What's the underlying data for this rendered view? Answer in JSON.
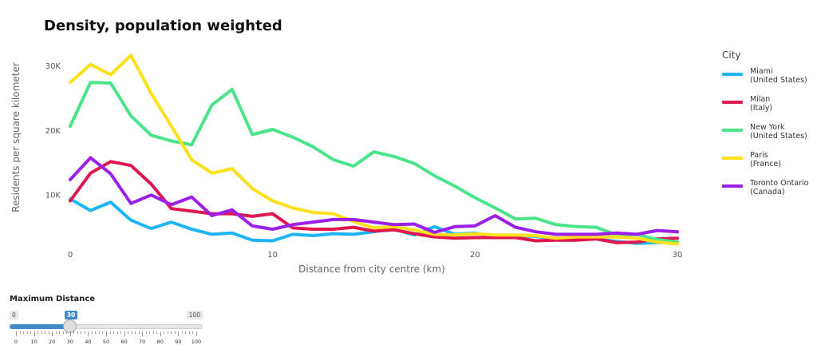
{
  "chart_data": {
    "type": "line",
    "title": "Density, population weighted",
    "xlabel": "Distance from city centre (km)",
    "ylabel": "Residents per square kilometer",
    "xlim": [
      -1,
      30
    ],
    "ylim": [
      1000,
      33000
    ],
    "x_ticks": [
      0,
      10,
      20,
      30
    ],
    "y_ticks": [
      10000,
      20000,
      30000
    ],
    "y_tick_labels": [
      "10K",
      "20K",
      "30K"
    ],
    "legend_title": "City",
    "legend_position": "right",
    "x": [
      0,
      1,
      2,
      3,
      4,
      5,
      6,
      7,
      8,
      9,
      10,
      11,
      12,
      13,
      14,
      15,
      16,
      17,
      18,
      19,
      20,
      21,
      22,
      23,
      24,
      25,
      26,
      27,
      28,
      29,
      30
    ],
    "series": [
      {
        "name": "Miami",
        "sublabel": "(United States)",
        "color": "#1fb5f5",
        "values": [
          9300,
          7500,
          8800,
          6000,
          4700,
          5700,
          4600,
          3800,
          4000,
          2900,
          2800,
          3800,
          3600,
          3900,
          3800,
          4200,
          4600,
          3700,
          5000,
          3800,
          4000,
          3400,
          3500,
          3500,
          3000,
          3000,
          3100,
          2700,
          2400,
          2500,
          2500
        ]
      },
      {
        "name": "Milan",
        "sublabel": "(Italy)",
        "color": "#e0174f",
        "values": [
          9000,
          13300,
          15100,
          14500,
          11600,
          7800,
          7400,
          7000,
          7000,
          6600,
          7000,
          4800,
          4600,
          4600,
          4900,
          4300,
          4500,
          3900,
          3400,
          3200,
          3300,
          3300,
          3300,
          2800,
          2900,
          2900,
          3100,
          2500,
          2600,
          3100,
          3200
        ]
      },
      {
        "name": "New York",
        "sublabel": "(United States)",
        "color": "#4be48a",
        "values": [
          20600,
          27400,
          27300,
          22200,
          19200,
          18300,
          17700,
          23900,
          26300,
          19300,
          20100,
          18900,
          17400,
          15400,
          14400,
          16600,
          15900,
          14800,
          12900,
          11300,
          9500,
          7900,
          6200,
          6300,
          5300,
          5000,
          4900,
          3700,
          3800,
          3000,
          2600
        ]
      },
      {
        "name": "Paris",
        "sublabel": "(France)",
        "color": "#ffe01a",
        "values": [
          27400,
          30200,
          28600,
          31600,
          25700,
          20600,
          15400,
          13300,
          14000,
          10900,
          9000,
          7900,
          7200,
          7000,
          5800,
          4800,
          5000,
          4500,
          3800,
          3700,
          3900,
          3700,
          3700,
          3600,
          3200,
          3400,
          3400,
          3400,
          3200,
          2600,
          2300
        ]
      },
      {
        "name": "Toronto Ontario",
        "sublabel": "(Canada)",
        "color": "#9b1fe8",
        "values": [
          12300,
          15700,
          13200,
          8600,
          9900,
          8400,
          9600,
          6700,
          7600,
          5100,
          4600,
          5300,
          5700,
          6100,
          6100,
          5700,
          5300,
          5400,
          4100,
          5000,
          5100,
          6700,
          4900,
          4200,
          3800,
          3800,
          3800,
          4000,
          3800,
          4400,
          4200
        ]
      }
    ]
  },
  "slider": {
    "label": "Maximum Distance",
    "min": 0,
    "max": 100,
    "value": 30,
    "min_label": "0",
    "max_label": "100",
    "value_label": "30",
    "tick_labels": [
      "0",
      "10",
      "20",
      "30",
      "40",
      "50",
      "60",
      "70",
      "80",
      "90",
      "100"
    ]
  }
}
